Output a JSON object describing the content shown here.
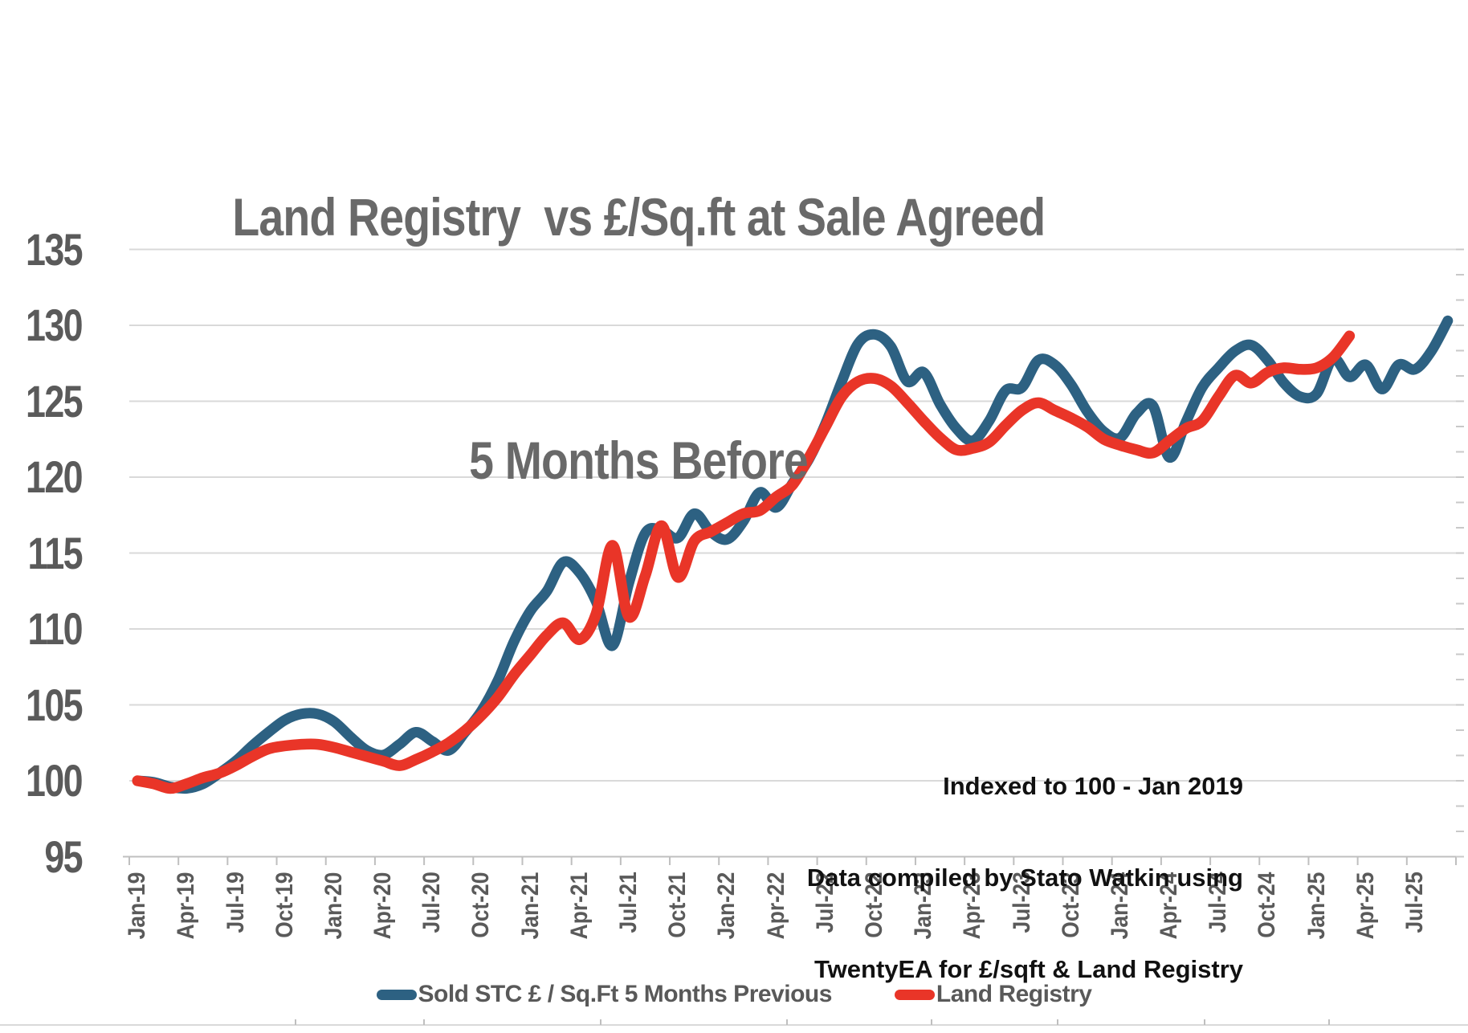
{
  "title": {
    "line1": "Land Registry  vs £/Sq.ft at Sale Agreed",
    "line2": "5 Months Before"
  },
  "annotation": {
    "line1": "Indexed to 100 - Jan 2019",
    "line2": "Data compiled by Stato Watkin using",
    "line3": "TwentyEA for £/sqft & Land Registry"
  },
  "legend": {
    "items": [
      {
        "label": "Sold STC £ / Sq.Ft 5 Months Previous",
        "color": "#2d6182"
      },
      {
        "label": "Land Registry",
        "color": "#e93528"
      }
    ]
  },
  "colors": {
    "title_text": "#696969",
    "axis_text": "#5a5a5a",
    "annotation_text": "#111111",
    "gridline": "#d9d9d9",
    "axis_line": "#bfbfbf",
    "series_blue": "#2d6182",
    "series_red": "#e93528",
    "background": "#ffffff"
  },
  "chart_data": {
    "type": "line",
    "title": "Land Registry  vs £/Sq.ft at Sale Agreed 5 Months Before",
    "xlabel": "",
    "ylabel": "",
    "ylim": [
      95,
      135
    ],
    "y_tick_step": 5,
    "y_tick_labels": [
      "135",
      "130",
      "125",
      "120",
      "115",
      "110",
      "105",
      "100",
      "95"
    ],
    "x_tick_labels": [
      "Jan-19",
      "Apr-19",
      "Jul-19",
      "Oct-19",
      "Jan-20",
      "Apr-20",
      "Jul-20",
      "Oct-20",
      "Jan-21",
      "Apr-21",
      "Jul-21",
      "Oct-21",
      "Jan-22",
      "Apr-22",
      "Jul-22",
      "Oct-22",
      "Jan-23",
      "Apr-23",
      "Jul-23",
      "Oct-23",
      "Jan-24",
      "Apr-24",
      "Jul-24",
      "Oct-24",
      "Jan-25",
      "Apr-25",
      "Jul-25"
    ],
    "x": [
      "Jan-19",
      "Feb-19",
      "Mar-19",
      "Apr-19",
      "May-19",
      "Jun-19",
      "Jul-19",
      "Aug-19",
      "Sep-19",
      "Oct-19",
      "Nov-19",
      "Dec-19",
      "Jan-20",
      "Feb-20",
      "Mar-20",
      "Apr-20",
      "May-20",
      "Jun-20",
      "Jul-20",
      "Aug-20",
      "Sep-20",
      "Oct-20",
      "Nov-20",
      "Dec-20",
      "Jan-21",
      "Feb-21",
      "Mar-21",
      "Apr-21",
      "May-21",
      "Jun-21",
      "Jul-21",
      "Aug-21",
      "Sep-21",
      "Oct-21",
      "Nov-21",
      "Dec-21",
      "Jan-22",
      "Feb-22",
      "Mar-22",
      "Apr-22",
      "May-22",
      "Jun-22",
      "Jul-22",
      "Aug-22",
      "Sep-22",
      "Oct-22",
      "Nov-22",
      "Dec-22",
      "Jan-23",
      "Feb-23",
      "Mar-23",
      "Apr-23",
      "May-23",
      "Jun-23",
      "Jul-23",
      "Aug-23",
      "Sep-23",
      "Oct-23",
      "Nov-23",
      "Dec-23",
      "Jan-24",
      "Feb-24",
      "Mar-24",
      "Apr-24",
      "May-24",
      "Jun-24",
      "Jul-24",
      "Aug-24",
      "Sep-24",
      "Oct-24",
      "Nov-24",
      "Dec-24",
      "Jan-25",
      "Feb-25",
      "Mar-25",
      "Apr-25",
      "May-25",
      "Jun-25",
      "Jul-25",
      "Aug-25",
      "Sep-25"
    ],
    "grid": true,
    "legend_position": "bottom",
    "smoothed": true,
    "indexed_base": "Indexed to 100 - Jan 2019",
    "series": [
      {
        "name": "Sold STC £ / Sq.Ft 5 Months Previous",
        "color": "#2d6182",
        "stroke_width": 13,
        "values": [
          100.0,
          99.9,
          99.6,
          99.5,
          99.8,
          100.5,
          101.3,
          102.3,
          103.2,
          104.0,
          104.4,
          104.4,
          103.9,
          102.9,
          102.0,
          101.7,
          102.4,
          103.2,
          102.6,
          102.0,
          103.2,
          104.6,
          106.6,
          109.2,
          111.2,
          112.5,
          114.4,
          113.7,
          111.8,
          108.9,
          113.0,
          116.3,
          116.5,
          116.0,
          117.6,
          116.4,
          115.9,
          117.1,
          119.0,
          118.0,
          119.6,
          121.2,
          123.5,
          126.3,
          128.8,
          129.4,
          128.6,
          126.3,
          126.9,
          124.8,
          123.2,
          122.4,
          123.7,
          125.7,
          125.9,
          127.7,
          127.4,
          126.1,
          124.3,
          123.0,
          122.6,
          124.2,
          124.7,
          121.3,
          123.6,
          125.9,
          127.2,
          128.3,
          128.7,
          127.7,
          126.2,
          125.3,
          125.5,
          127.8,
          126.6,
          127.4,
          125.8,
          127.4,
          127.1,
          128.3,
          130.3
        ]
      },
      {
        "name": "Land Registry",
        "color": "#e93528",
        "stroke_width": 13.5,
        "values": [
          100.0,
          99.8,
          99.5,
          99.8,
          100.2,
          100.5,
          101.0,
          101.6,
          102.1,
          102.3,
          102.4,
          102.4,
          102.2,
          101.9,
          101.6,
          101.3,
          101.0,
          101.4,
          101.9,
          102.5,
          103.3,
          104.3,
          105.5,
          107.0,
          108.3,
          109.6,
          110.4,
          109.3,
          111.0,
          115.5,
          110.8,
          113.5,
          116.8,
          113.4,
          115.8,
          116.4,
          117.0,
          117.6,
          117.8,
          118.7,
          119.5,
          121.3,
          123.3,
          125.3,
          126.3,
          126.5,
          126.0,
          124.9,
          123.7,
          122.6,
          121.8,
          121.9,
          122.3,
          123.4,
          124.4,
          124.9,
          124.4,
          123.9,
          123.3,
          122.5,
          122.1,
          121.8,
          121.6,
          122.4,
          123.2,
          123.7,
          125.3,
          126.7,
          126.2,
          126.9,
          127.2,
          127.1,
          127.2,
          127.9,
          129.3
        ]
      }
    ]
  }
}
